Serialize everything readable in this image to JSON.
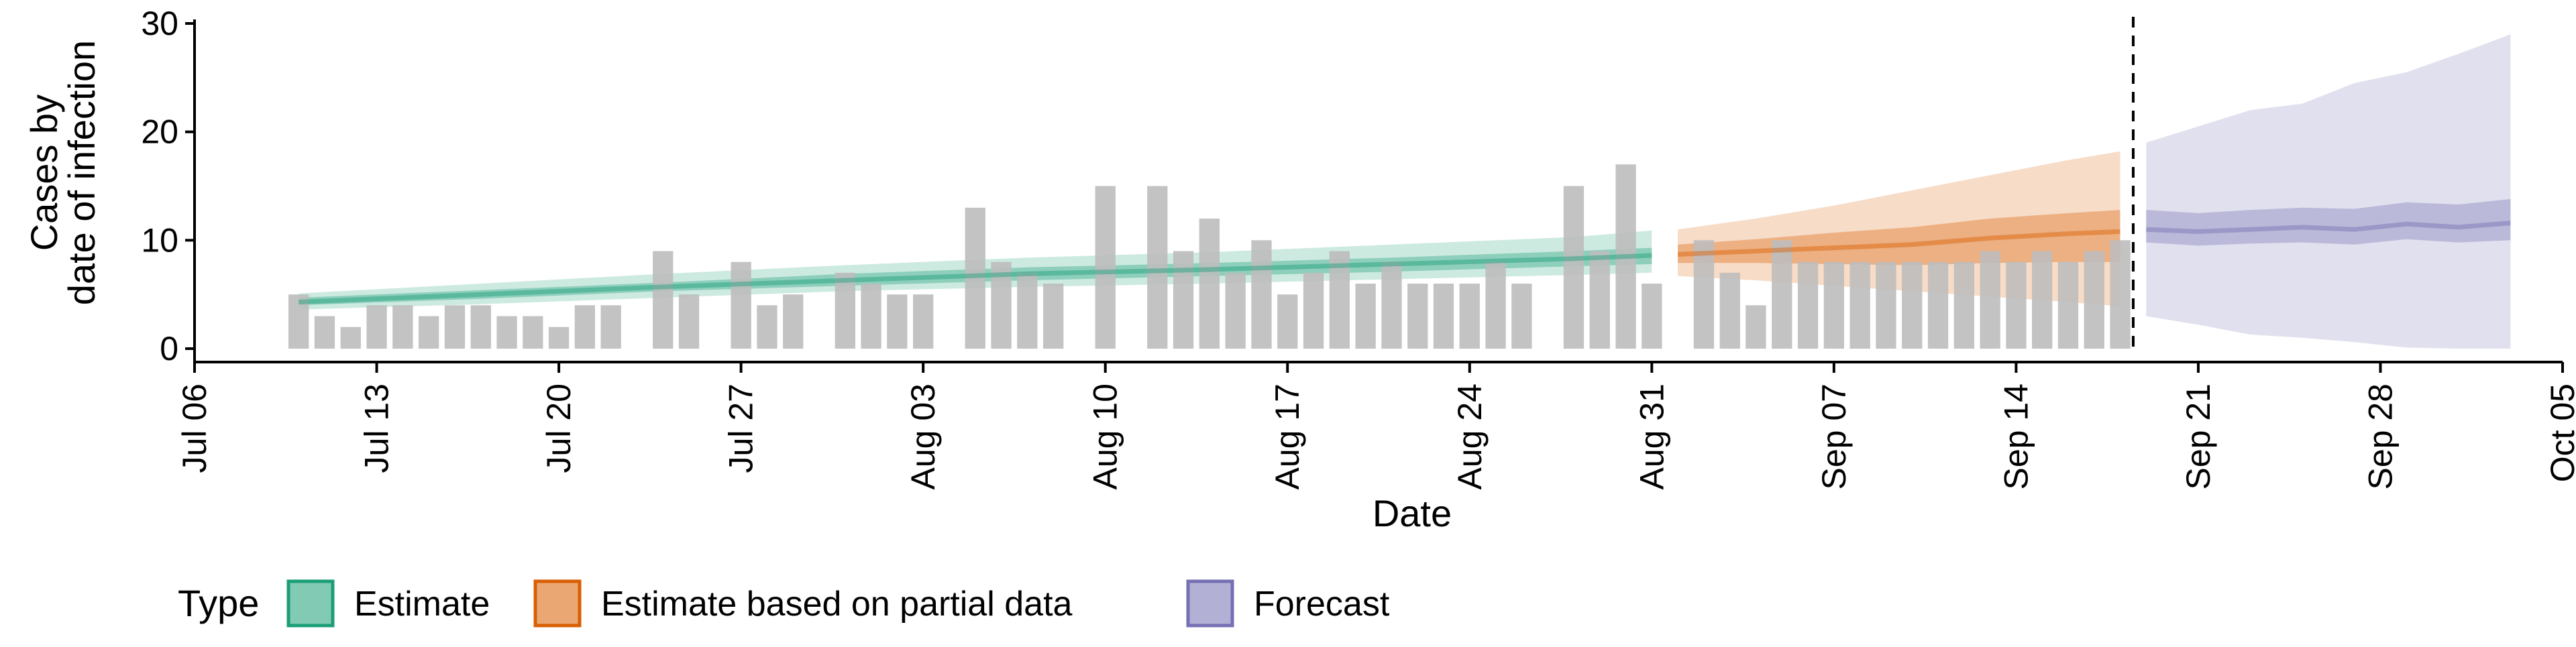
{
  "chart_data": {
    "type": "area",
    "ylabel_lines": [
      "Cases by",
      "date of infection"
    ],
    "xlabel": "Date",
    "ylim": [
      0,
      30
    ],
    "xlim": [
      "2020-07-06",
      "2020-10-05"
    ],
    "y_ticks": [
      0,
      10,
      20,
      30
    ],
    "x_ticks": [
      {
        "date": "2020-07-06",
        "label": "Jul 06"
      },
      {
        "date": "2020-07-13",
        "label": "Jul 13"
      },
      {
        "date": "2020-07-20",
        "label": "Jul 20"
      },
      {
        "date": "2020-07-27",
        "label": "Jul 27"
      },
      {
        "date": "2020-08-03",
        "label": "Aug 03"
      },
      {
        "date": "2020-08-10",
        "label": "Aug 10"
      },
      {
        "date": "2020-08-17",
        "label": "Aug 17"
      },
      {
        "date": "2020-08-24",
        "label": "Aug 24"
      },
      {
        "date": "2020-08-31",
        "label": "Aug 31"
      },
      {
        "date": "2020-09-07",
        "label": "Sep 07"
      },
      {
        "date": "2020-09-14",
        "label": "Sep 14"
      },
      {
        "date": "2020-09-21",
        "label": "Sep 21"
      },
      {
        "date": "2020-09-28",
        "label": "Sep 28"
      },
      {
        "date": "2020-10-05",
        "label": "Oct 05"
      }
    ],
    "grid": false,
    "legend_position": "bottom-left",
    "legend_title": "Type",
    "cutoff_line_date": "2020-09-18",
    "reported_cases": {
      "color": "#bdbdbd",
      "x": [
        "2020-07-10",
        "2020-07-11",
        "2020-07-12",
        "2020-07-13",
        "2020-07-14",
        "2020-07-15",
        "2020-07-16",
        "2020-07-17",
        "2020-07-18",
        "2020-07-19",
        "2020-07-20",
        "2020-07-21",
        "2020-07-22",
        "2020-07-23",
        "2020-07-24",
        "2020-07-25",
        "2020-07-26",
        "2020-07-27",
        "2020-07-28",
        "2020-07-29",
        "2020-07-30",
        "2020-07-31",
        "2020-08-01",
        "2020-08-02",
        "2020-08-03",
        "2020-08-04",
        "2020-08-05",
        "2020-08-06",
        "2020-08-07",
        "2020-08-08",
        "2020-08-09",
        "2020-08-10",
        "2020-08-11",
        "2020-08-12",
        "2020-08-13",
        "2020-08-14",
        "2020-08-15",
        "2020-08-16",
        "2020-08-17",
        "2020-08-18",
        "2020-08-19",
        "2020-08-20",
        "2020-08-21",
        "2020-08-22",
        "2020-08-23",
        "2020-08-24",
        "2020-08-25",
        "2020-08-26",
        "2020-08-27",
        "2020-08-28",
        "2020-08-29",
        "2020-08-30",
        "2020-08-31",
        "2020-09-01",
        "2020-09-02",
        "2020-09-03",
        "2020-09-04",
        "2020-09-05",
        "2020-09-06",
        "2020-09-07",
        "2020-09-08",
        "2020-09-09",
        "2020-09-10",
        "2020-09-11",
        "2020-09-12",
        "2020-09-13",
        "2020-09-14",
        "2020-09-15",
        "2020-09-16",
        "2020-09-17",
        "2020-09-18"
      ],
      "values": [
        5,
        3,
        2,
        4,
        4,
        3,
        4,
        4,
        3,
        3,
        2,
        4,
        4,
        0,
        9,
        5,
        0,
        8,
        4,
        5,
        0,
        7,
        6,
        5,
        5,
        0,
        13,
        8,
        7,
        6,
        0,
        15,
        0,
        15,
        9,
        12,
        7,
        10,
        5,
        7,
        9,
        6,
        8,
        6,
        6,
        6,
        8,
        6,
        0,
        15,
        9,
        17,
        6,
        0,
        10,
        7,
        4,
        10,
        8,
        8,
        8,
        8,
        8,
        8,
        8,
        9,
        8,
        9,
        8,
        9,
        10
      ]
    },
    "series": [
      {
        "name": "Estimate",
        "color": "#1b9e77",
        "x": [
          "2020-07-10",
          "2020-07-17",
          "2020-07-24",
          "2020-07-31",
          "2020-08-07",
          "2020-08-14",
          "2020-08-21",
          "2020-08-28",
          "2020-08-31"
        ],
        "median": [
          4.3,
          5.0,
          5.7,
          6.3,
          6.9,
          7.3,
          7.8,
          8.3,
          8.6
        ],
        "inner_low": [
          4.0,
          4.6,
          5.3,
          5.8,
          6.3,
          6.7,
          7.1,
          7.6,
          7.8
        ],
        "inner_high": [
          4.7,
          5.4,
          6.1,
          6.9,
          7.5,
          7.9,
          8.4,
          9.0,
          9.3
        ],
        "outer_low": [
          3.6,
          4.1,
          4.7,
          5.3,
          5.7,
          6.0,
          6.4,
          6.8,
          7.0
        ],
        "outer_high": [
          5.1,
          6.0,
          6.9,
          7.7,
          8.4,
          8.9,
          9.6,
          10.3,
          10.9
        ]
      },
      {
        "name": "Estimate based on partial data",
        "color": "#d95f02",
        "x": [
          "2020-09-01",
          "2020-09-04",
          "2020-09-07",
          "2020-09-10",
          "2020-09-13",
          "2020-09-16",
          "2020-09-18"
        ],
        "median": [
          8.7,
          9.0,
          9.3,
          9.6,
          10.2,
          10.6,
          10.8
        ],
        "inner_low": [
          7.9,
          7.9,
          7.8,
          7.7,
          7.9,
          8.0,
          8.0
        ],
        "inner_high": [
          9.6,
          10.1,
          10.7,
          11.2,
          12.0,
          12.5,
          12.8
        ],
        "outer_low": [
          6.7,
          6.3,
          5.8,
          5.3,
          4.8,
          4.3,
          3.9
        ],
        "outer_high": [
          11.0,
          12.0,
          13.2,
          14.6,
          16.0,
          17.4,
          18.2
        ]
      },
      {
        "name": "Forecast",
        "color": "#7570b3",
        "x": [
          "2020-09-19",
          "2020-09-21",
          "2020-09-23",
          "2020-09-25",
          "2020-09-27",
          "2020-09-29",
          "2020-10-01",
          "2020-10-03"
        ],
        "median": [
          11.0,
          10.8,
          11.0,
          11.2,
          11.0,
          11.5,
          11.2,
          11.6
        ],
        "inner_low": [
          9.8,
          9.5,
          9.7,
          9.8,
          9.6,
          10.1,
          9.8,
          10.0
        ],
        "inner_high": [
          12.8,
          12.5,
          12.8,
          13.0,
          12.9,
          13.5,
          13.3,
          13.8
        ],
        "outer_low": [
          3.0,
          2.2,
          1.3,
          1.0,
          0.6,
          0.1,
          0.0,
          0.0
        ],
        "outer_high": [
          19.0,
          20.5,
          22.0,
          22.6,
          24.5,
          25.5,
          27.2,
          29.0
        ]
      }
    ]
  }
}
